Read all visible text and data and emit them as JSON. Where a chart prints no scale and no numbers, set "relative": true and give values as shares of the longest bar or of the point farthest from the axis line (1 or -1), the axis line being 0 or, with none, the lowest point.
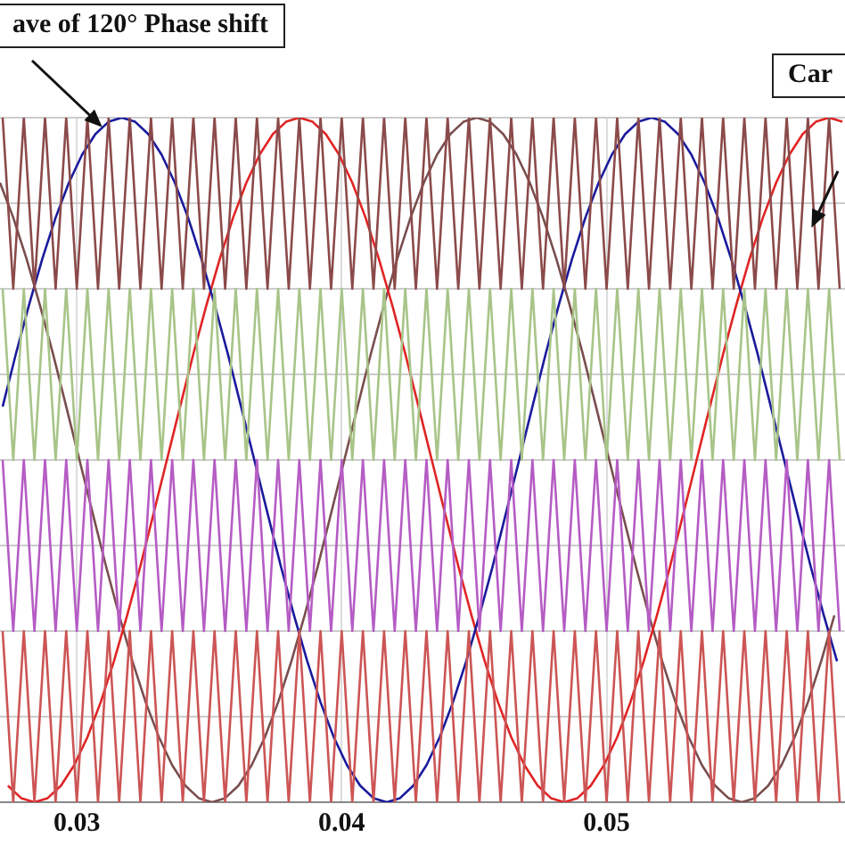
{
  "chart_data": {
    "type": "line",
    "relative": true,
    "grid": true,
    "legend": false,
    "marker": "none",
    "line_style": "solid",
    "xlim": [
      0.0271,
      0.059
    ],
    "xticks": [
      0.03,
      0.04,
      0.05
    ],
    "annotations": [
      "ave of 120° Phase shift",
      "Car"
    ],
    "x": [
      0.0272,
      0.0276,
      0.028,
      0.0284,
      0.0288,
      0.0292,
      0.0296,
      0.03,
      0.0304,
      0.0308,
      0.0312,
      0.0316,
      0.032,
      0.0324,
      0.0328,
      0.0332,
      0.0336,
      0.034,
      0.0344,
      0.0348,
      0.0352,
      0.0356,
      0.036,
      0.0364,
      0.0368,
      0.0372,
      0.0376,
      0.038,
      0.0384,
      0.0388,
      0.0392,
      0.0396,
      0.04,
      0.0404,
      0.0408,
      0.0412,
      0.0416,
      0.042,
      0.0424,
      0.0428,
      0.0432,
      0.0436,
      0.044,
      0.0444,
      0.0448,
      0.0452,
      0.0456,
      0.046,
      0.0464,
      0.0468,
      0.0472,
      0.0476,
      0.048,
      0.0484,
      0.0488,
      0.0492,
      0.0496,
      0.05,
      0.0504,
      0.0508,
      0.0512,
      0.0516,
      0.052,
      0.0524,
      0.0528,
      0.0532,
      0.0536,
      0.054,
      0.0544,
      0.0548,
      0.0552,
      0.0556,
      0.056,
      0.0564,
      0.0568,
      0.0572,
      0.0576,
      0.058,
      0.0584,
      0.0588
    ],
    "series": [
      {
        "color": "#8b4a4a",
        "values": [
          1,
          0.75,
          1,
          0.75,
          1,
          0.75,
          1,
          0.75,
          1,
          0.75,
          1,
          0.75,
          1,
          0.75,
          1,
          0.75,
          1,
          0.75,
          1,
          0.75,
          1,
          0.75,
          1,
          0.75,
          1,
          0.75,
          1,
          0.75,
          1,
          0.75,
          1,
          0.75,
          1,
          0.75,
          1,
          0.75,
          1,
          0.75,
          1,
          0.75,
          1,
          0.75,
          1,
          0.75,
          1,
          0.75,
          1,
          0.75,
          1,
          0.75,
          1,
          0.75,
          1,
          0.75,
          1,
          0.75,
          1,
          0.75,
          1,
          0.75,
          1,
          0.75,
          1,
          0.75,
          1,
          0.75,
          1,
          0.75,
          1,
          0.75,
          1,
          0.75,
          1,
          0.75,
          1,
          0.75,
          1,
          0.75,
          1,
          0.75
        ]
      },
      {
        "color": "#a8c488",
        "values": [
          0.75,
          0.5,
          0.75,
          0.5,
          0.75,
          0.5,
          0.75,
          0.5,
          0.75,
          0.5,
          0.75,
          0.5,
          0.75,
          0.5,
          0.75,
          0.5,
          0.75,
          0.5,
          0.75,
          0.5,
          0.75,
          0.5,
          0.75,
          0.5,
          0.75,
          0.5,
          0.75,
          0.5,
          0.75,
          0.5,
          0.75,
          0.5,
          0.75,
          0.5,
          0.75,
          0.5,
          0.75,
          0.5,
          0.75,
          0.5,
          0.75,
          0.5,
          0.75,
          0.5,
          0.75,
          0.5,
          0.75,
          0.5,
          0.75,
          0.5,
          0.75,
          0.5,
          0.75,
          0.5,
          0.75,
          0.5,
          0.75,
          0.5,
          0.75,
          0.5,
          0.75,
          0.5,
          0.75,
          0.5,
          0.75,
          0.5,
          0.75,
          0.5,
          0.75,
          0.5,
          0.75,
          0.5,
          0.75,
          0.5,
          0.75,
          0.5,
          0.75,
          0.5,
          0.75,
          0.5
        ]
      },
      {
        "color": "#b55cc4",
        "values": [
          0.5,
          0.25,
          0.5,
          0.25,
          0.5,
          0.25,
          0.5,
          0.25,
          0.5,
          0.25,
          0.5,
          0.25,
          0.5,
          0.25,
          0.5,
          0.25,
          0.5,
          0.25,
          0.5,
          0.25,
          0.5,
          0.25,
          0.5,
          0.25,
          0.5,
          0.25,
          0.5,
          0.25,
          0.5,
          0.25,
          0.5,
          0.25,
          0.5,
          0.25,
          0.5,
          0.25,
          0.5,
          0.25,
          0.5,
          0.25,
          0.5,
          0.25,
          0.5,
          0.25,
          0.5,
          0.25,
          0.5,
          0.25,
          0.5,
          0.25,
          0.5,
          0.25,
          0.5,
          0.25,
          0.5,
          0.25,
          0.5,
          0.25,
          0.5,
          0.25,
          0.5,
          0.25,
          0.5,
          0.25,
          0.5,
          0.25,
          0.5,
          0.25,
          0.5,
          0.25,
          0.5,
          0.25,
          0.5,
          0.25,
          0.5,
          0.25,
          0.5,
          0.25,
          0.5,
          0.25
        ]
      },
      {
        "color": "#cc5555",
        "values": [
          0.25,
          0,
          0.25,
          0,
          0.25,
          0,
          0.25,
          0,
          0.25,
          0,
          0.25,
          0,
          0.25,
          0,
          0.25,
          0,
          0.25,
          0,
          0.25,
          0,
          0.25,
          0,
          0.25,
          0,
          0.25,
          0,
          0.25,
          0,
          0.25,
          0,
          0.25,
          0,
          0.25,
          0,
          0.25,
          0,
          0.25,
          0,
          0.25,
          0,
          0.25,
          0,
          0.25,
          0,
          0.25,
          0,
          0.25,
          0,
          0.25,
          0,
          0.25,
          0,
          0.25,
          0,
          0.25,
          0,
          0.25,
          0,
          0.25,
          0,
          0.25,
          0,
          0.25,
          0,
          0.25,
          0,
          0.25,
          0,
          0.25,
          0,
          0.25,
          0,
          0.25,
          0,
          0.25,
          0,
          0.25,
          0,
          0.25,
          0
        ]
      },
      {
        "color": "#1a1a9c",
        "x": [
          0.0272,
          0.0277,
          0.0282,
          0.0287,
          0.0292,
          0.0297,
          0.0302,
          0.0307,
          0.0312,
          0.0317,
          0.0322,
          0.0327,
          0.0332,
          0.0337,
          0.0342,
          0.0347,
          0.0352,
          0.0357,
          0.0362,
          0.0367,
          0.0372,
          0.0377,
          0.0382,
          0.0387,
          0.0392,
          0.0397,
          0.0402,
          0.0407,
          0.0412,
          0.0417,
          0.0422,
          0.0427,
          0.0432,
          0.0437,
          0.0442,
          0.0447,
          0.0452,
          0.0457,
          0.0462,
          0.0467,
          0.0472,
          0.0477,
          0.0482,
          0.0487,
          0.0492,
          0.0497,
          0.0502,
          0.0507,
          0.0512,
          0.0517,
          0.0522,
          0.0527,
          0.0532,
          0.0537,
          0.0542,
          0.0547,
          0.0552,
          0.0557,
          0.0562,
          0.0567,
          0.0572,
          0.0577,
          0.0582,
          0.0587
        ],
        "values": [
          0.578,
          0.655,
          0.727,
          0.794,
          0.854,
          0.905,
          0.946,
          0.976,
          0.994,
          1,
          0.994,
          0.976,
          0.946,
          0.905,
          0.854,
          0.794,
          0.727,
          0.655,
          0.578,
          0.5,
          0.422,
          0.345,
          0.273,
          0.206,
          0.146,
          0.095,
          0.054,
          0.024,
          0.006,
          0,
          0.006,
          0.024,
          0.054,
          0.095,
          0.146,
          0.206,
          0.273,
          0.345,
          0.422,
          0.5,
          0.578,
          0.655,
          0.727,
          0.794,
          0.854,
          0.905,
          0.946,
          0.976,
          0.994,
          1,
          0.994,
          0.976,
          0.946,
          0.905,
          0.854,
          0.794,
          0.727,
          0.655,
          0.578,
          0.5,
          0.422,
          0.345,
          0.273,
          0.206
        ]
      },
      {
        "color": "#e02424",
        "x": [
          0.0274,
          0.0279,
          0.0284,
          0.0289,
          0.0294,
          0.0299,
          0.0304,
          0.0309,
          0.0314,
          0.0319,
          0.0324,
          0.0329,
          0.0334,
          0.0339,
          0.0344,
          0.0349,
          0.0354,
          0.0359,
          0.0364,
          0.0369,
          0.0374,
          0.0379,
          0.0384,
          0.0389,
          0.0394,
          0.0399,
          0.0404,
          0.0409,
          0.0414,
          0.0419,
          0.0424,
          0.0429,
          0.0434,
          0.0439,
          0.0444,
          0.0449,
          0.0454,
          0.0459,
          0.0464,
          0.0469,
          0.0474,
          0.0479,
          0.0484,
          0.0489,
          0.0494,
          0.0499,
          0.0504,
          0.0509,
          0.0514,
          0.0519,
          0.0524,
          0.0529,
          0.0534,
          0.0539,
          0.0544,
          0.0549,
          0.0554,
          0.0559,
          0.0564,
          0.0569,
          0.0574,
          0.0579,
          0.0584,
          0.0589
        ],
        "values": [
          0.024,
          0.006,
          0,
          0.006,
          0.024,
          0.054,
          0.095,
          0.146,
          0.206,
          0.273,
          0.345,
          0.422,
          0.5,
          0.578,
          0.655,
          0.727,
          0.794,
          0.854,
          0.905,
          0.946,
          0.976,
          0.994,
          1,
          0.994,
          0.976,
          0.946,
          0.905,
          0.854,
          0.794,
          0.727,
          0.655,
          0.578,
          0.5,
          0.422,
          0.345,
          0.273,
          0.206,
          0.146,
          0.095,
          0.054,
          0.024,
          0.006,
          0,
          0.006,
          0.024,
          0.054,
          0.095,
          0.146,
          0.206,
          0.273,
          0.345,
          0.422,
          0.5,
          0.578,
          0.655,
          0.727,
          0.794,
          0.854,
          0.905,
          0.946,
          0.976,
          0.994,
          1,
          0.994
        ]
      },
      {
        "color": "#7a4e4e",
        "x": [
          0.0271,
          0.0276,
          0.0281,
          0.0286,
          0.0291,
          0.0296,
          0.0301,
          0.0306,
          0.0311,
          0.0316,
          0.0321,
          0.0326,
          0.0331,
          0.0336,
          0.0341,
          0.0346,
          0.0351,
          0.0356,
          0.0361,
          0.0366,
          0.0371,
          0.0376,
          0.0381,
          0.0386,
          0.0391,
          0.0396,
          0.0401,
          0.0406,
          0.0411,
          0.0416,
          0.0421,
          0.0426,
          0.0431,
          0.0436,
          0.0441,
          0.0446,
          0.0451,
          0.0456,
          0.0461,
          0.0466,
          0.0471,
          0.0476,
          0.0481,
          0.0486,
          0.0491,
          0.0496,
          0.0501,
          0.0506,
          0.0511,
          0.0516,
          0.0521,
          0.0526,
          0.0531,
          0.0536,
          0.0541,
          0.0546,
          0.0551,
          0.0556,
          0.0561,
          0.0566,
          0.0571,
          0.0576,
          0.0581,
          0.0586
        ],
        "values": [
          0.905,
          0.854,
          0.794,
          0.727,
          0.655,
          0.578,
          0.5,
          0.422,
          0.345,
          0.273,
          0.206,
          0.146,
          0.095,
          0.054,
          0.024,
          0.006,
          0,
          0.006,
          0.024,
          0.054,
          0.095,
          0.146,
          0.206,
          0.273,
          0.345,
          0.422,
          0.5,
          0.578,
          0.655,
          0.727,
          0.794,
          0.854,
          0.905,
          0.946,
          0.976,
          0.994,
          1,
          0.994,
          0.976,
          0.946,
          0.905,
          0.854,
          0.794,
          0.727,
          0.655,
          0.578,
          0.5,
          0.422,
          0.345,
          0.273,
          0.206,
          0.146,
          0.095,
          0.054,
          0.024,
          0.006,
          0,
          0.006,
          0.024,
          0.054,
          0.095,
          0.146,
          0.206,
          0.273
        ]
      }
    ]
  }
}
